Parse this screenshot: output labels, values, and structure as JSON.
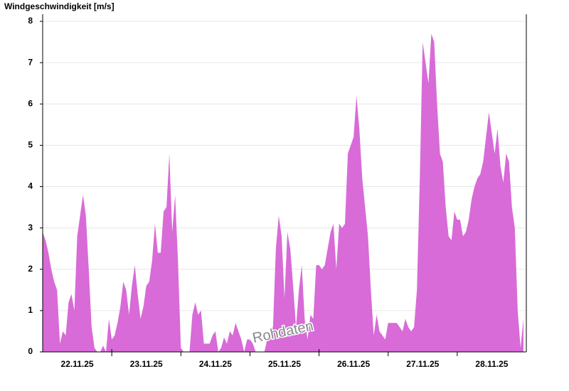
{
  "chart_data": {
    "type": "area",
    "title": "Windgeschwindigkeit [m/s]",
    "annotation": "Rohdaten",
    "color": "#d86bd8",
    "grid": true,
    "categories": [
      "22.11.25",
      "23.11.25",
      "24.11.25",
      "25.11.25",
      "26.11.25",
      "27.11.25",
      "28.11.25"
    ],
    "values": [
      [
        2.9,
        2.7,
        2.4,
        2.0,
        1.7,
        1.5,
        0.2,
        0.5,
        0.4,
        1.2,
        1.4,
        1.0,
        2.8,
        3.3,
        3.8,
        3.3,
        2.0,
        0.6,
        0.1,
        0,
        0,
        0.15,
        0,
        0.8
      ],
      [
        0.3,
        0.4,
        0.7,
        1.1,
        1.7,
        1.5,
        0.9,
        1.6,
        2.1,
        1.4,
        0.8,
        1.1,
        1.6,
        1.7,
        2.2,
        3.1,
        2.4,
        2.4,
        3.4,
        3.5,
        4.8,
        2.9,
        3.8,
        2.2
      ],
      [
        0.1,
        0,
        0,
        0,
        0.9,
        1.2,
        0.9,
        1.0,
        0.2,
        0.2,
        0.2,
        0.4,
        0.5,
        0,
        0.1,
        0.35,
        0.2,
        0.5,
        0.4,
        0.7,
        0.5,
        0.3,
        0,
        0.3
      ],
      [
        0.3,
        0.2,
        0,
        0,
        0,
        0,
        0.3,
        0.5,
        0.6,
        2.5,
        3.3,
        2.8,
        1.3,
        2.9,
        2.5,
        1.6,
        0.6,
        1.5,
        2.1,
        0.8,
        0.3,
        0.9,
        0.8,
        2.1
      ],
      [
        2.1,
        2.0,
        2.1,
        2.5,
        2.9,
        3.1,
        2.0,
        3.1,
        3.0,
        3.1,
        4.8,
        5.0,
        5.2,
        6.2,
        5.4,
        4.2,
        3.5,
        2.8,
        1.5,
        0.4,
        0.9,
        0.5,
        0.4,
        0.3
      ],
      [
        0.7,
        0.7,
        0.7,
        0.7,
        0.6,
        0.5,
        0.8,
        0.6,
        0.5,
        0.6,
        1.5,
        4.2,
        7.5,
        7.0,
        6.5,
        7.7,
        7.5,
        6.0,
        4.8,
        4.6,
        3.5,
        2.8,
        2.7,
        3.4
      ],
      [
        3.2,
        3.2,
        2.8,
        2.9,
        3.2,
        3.7,
        4.0,
        4.2,
        4.3,
        4.6,
        5.2,
        5.8,
        5.3,
        4.8,
        5.4,
        4.5,
        4.1,
        4.8,
        4.6,
        3.5,
        3.0,
        1.0,
        0.1,
        0.8
      ]
    ],
    "ylim": [
      0,
      8
    ],
    "yticks": [
      0,
      1,
      2,
      3,
      4,
      5,
      6,
      7,
      8
    ]
  }
}
